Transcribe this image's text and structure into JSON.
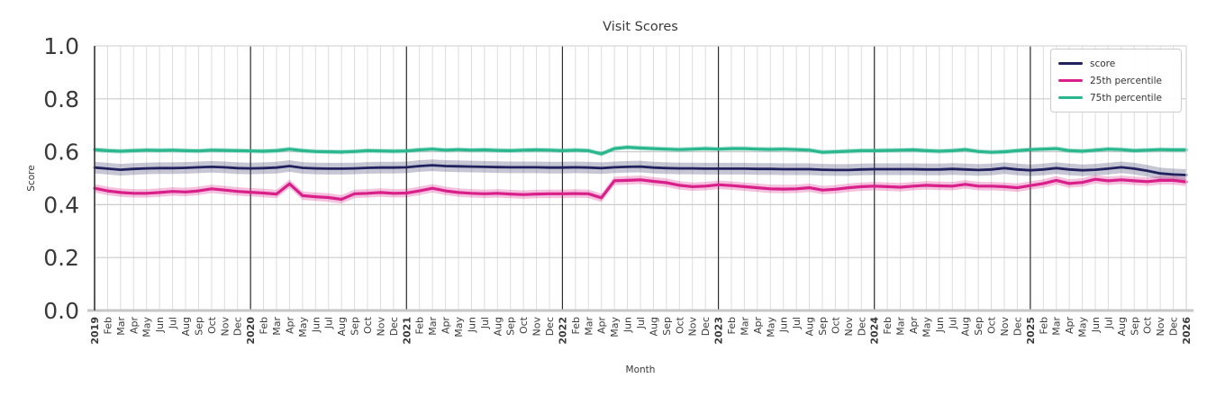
{
  "chart_data": {
    "type": "line",
    "title": "Visit Scores",
    "xlabel": "Month",
    "ylabel": "Score",
    "ylim": [
      0.0,
      1.0
    ],
    "ytick_values": [
      0.0,
      0.2,
      0.4,
      0.6,
      0.8,
      1.0
    ],
    "ytick_labels": [
      "0.0",
      "0.2",
      "0.4",
      "0.6",
      "0.8",
      "1.0"
    ],
    "grid": {
      "vertical": "monthly",
      "horizontal_step": 0.2,
      "year_separators": true
    },
    "legend_position": "upper right",
    "x_tick_labels": [
      "2019",
      "Feb",
      "Mar",
      "Apr",
      "May",
      "Jun",
      "Jul",
      "Aug",
      "Sep",
      "Oct",
      "Nov",
      "Dec",
      "2020",
      "Feb",
      "Mar",
      "Apr",
      "May",
      "Jun",
      "Jul",
      "Aug",
      "Sep",
      "Oct",
      "Nov",
      "Dec",
      "2021",
      "Feb",
      "Mar",
      "Apr",
      "May",
      "Jun",
      "Jul",
      "Aug",
      "Sep",
      "Oct",
      "Nov",
      "Dec",
      "2022",
      "Feb",
      "Mar",
      "Apr",
      "May",
      "Jun",
      "Jul",
      "Aug",
      "Sep",
      "Oct",
      "Nov",
      "Dec",
      "2023",
      "Feb",
      "Mar",
      "Apr",
      "May",
      "Jun",
      "Jul",
      "Aug",
      "Sep",
      "Oct",
      "Nov",
      "Dec",
      "2024",
      "Feb",
      "Mar",
      "Apr",
      "May",
      "Jun",
      "Jul",
      "Aug",
      "Sep",
      "Oct",
      "Nov",
      "Dec",
      "2025",
      "Feb",
      "Mar",
      "Apr",
      "May",
      "Jun",
      "Jul",
      "Aug",
      "Sep",
      "Oct",
      "Nov",
      "Dec",
      "2026"
    ],
    "series": [
      {
        "name": "score",
        "color": "#21215e",
        "band_halfwidth": 0.022,
        "band_opacity": 0.26,
        "line_width": 2.8,
        "values": [
          0.54,
          0.536,
          0.532,
          0.535,
          0.537,
          0.538,
          0.538,
          0.539,
          0.541,
          0.543,
          0.541,
          0.538,
          0.537,
          0.538,
          0.54,
          0.546,
          0.539,
          0.537,
          0.536,
          0.536,
          0.537,
          0.539,
          0.54,
          0.54,
          0.541,
          0.546,
          0.549,
          0.546,
          0.545,
          0.544,
          0.543,
          0.542,
          0.541,
          0.541,
          0.541,
          0.54,
          0.54,
          0.541,
          0.54,
          0.538,
          0.541,
          0.543,
          0.544,
          0.54,
          0.538,
          0.537,
          0.537,
          0.536,
          0.536,
          0.536,
          0.536,
          0.535,
          0.535,
          0.534,
          0.534,
          0.534,
          0.532,
          0.531,
          0.531,
          0.533,
          0.534,
          0.534,
          0.534,
          0.534,
          0.533,
          0.533,
          0.535,
          0.533,
          0.531,
          0.533,
          0.538,
          0.533,
          0.53,
          0.533,
          0.538,
          0.533,
          0.53,
          0.532,
          0.536,
          0.541,
          0.536,
          0.528,
          0.518,
          0.514,
          0.512
        ]
      },
      {
        "name": "25th percentile",
        "color": "#d9208a",
        "band_halfwidth": 0.016,
        "band_opacity": 0.28,
        "line_width": 3.2,
        "values": [
          0.462,
          0.452,
          0.446,
          0.443,
          0.443,
          0.446,
          0.45,
          0.448,
          0.452,
          0.46,
          0.455,
          0.45,
          0.447,
          0.444,
          0.44,
          0.479,
          0.434,
          0.43,
          0.427,
          0.42,
          0.441,
          0.443,
          0.446,
          0.443,
          0.444,
          0.452,
          0.462,
          0.452,
          0.446,
          0.443,
          0.441,
          0.443,
          0.44,
          0.438,
          0.44,
          0.441,
          0.441,
          0.442,
          0.441,
          0.426,
          0.49,
          0.492,
          0.494,
          0.488,
          0.483,
          0.473,
          0.468,
          0.47,
          0.475,
          0.472,
          0.468,
          0.464,
          0.46,
          0.459,
          0.46,
          0.464,
          0.455,
          0.458,
          0.464,
          0.468,
          0.47,
          0.468,
          0.466,
          0.47,
          0.473,
          0.471,
          0.47,
          0.477,
          0.47,
          0.47,
          0.468,
          0.464,
          0.472,
          0.48,
          0.492,
          0.48,
          0.484,
          0.496,
          0.49,
          0.494,
          0.49,
          0.487,
          0.492,
          0.492,
          0.486
        ]
      },
      {
        "name": "75th percentile",
        "color": "#2ab78d",
        "band_halfwidth": 0.009,
        "band_opacity": 0.3,
        "line_width": 3.2,
        "values": [
          0.608,
          0.604,
          0.602,
          0.604,
          0.606,
          0.605,
          0.606,
          0.604,
          0.603,
          0.606,
          0.605,
          0.604,
          0.603,
          0.602,
          0.604,
          0.61,
          0.604,
          0.601,
          0.6,
          0.599,
          0.601,
          0.604,
          0.603,
          0.602,
          0.603,
          0.607,
          0.61,
          0.606,
          0.608,
          0.606,
          0.607,
          0.605,
          0.604,
          0.606,
          0.607,
          0.606,
          0.604,
          0.606,
          0.604,
          0.592,
          0.612,
          0.617,
          0.614,
          0.612,
          0.61,
          0.608,
          0.61,
          0.612,
          0.61,
          0.612,
          0.612,
          0.61,
          0.609,
          0.61,
          0.608,
          0.606,
          0.598,
          0.6,
          0.602,
          0.604,
          0.604,
          0.605,
          0.606,
          0.607,
          0.604,
          0.602,
          0.604,
          0.608,
          0.601,
          0.598,
          0.6,
          0.604,
          0.608,
          0.61,
          0.612,
          0.604,
          0.602,
          0.606,
          0.61,
          0.608,
          0.604,
          0.606,
          0.608,
          0.607,
          0.607
        ]
      }
    ],
    "colors": {
      "month_gridline": "#dcdcdc",
      "horizontal_gridline": "#cccccc",
      "year_line": "#2d2d2d",
      "spine_left": "#3c3c3c",
      "spine_light": "#d6d6d6",
      "spine_bottom": "#c6c6c6",
      "tick_label": "#3a3a3a",
      "title": "#3a3a3a"
    }
  }
}
